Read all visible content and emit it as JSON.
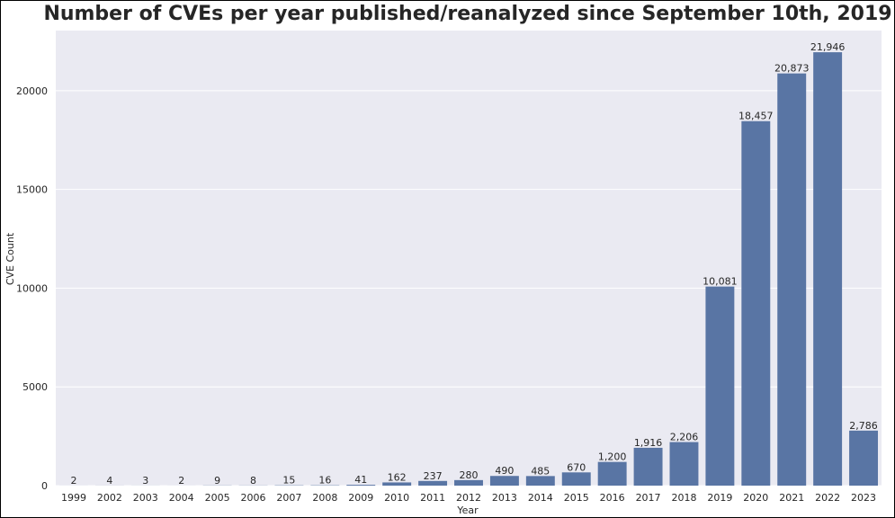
{
  "chart_data": {
    "type": "bar",
    "title": "Number of CVEs per year published/reanalyzed since September 10th, 2019",
    "xlabel": "Year",
    "ylabel": "CVE Count",
    "categories": [
      "1999",
      "2002",
      "2003",
      "2004",
      "2005",
      "2006",
      "2007",
      "2008",
      "2009",
      "2010",
      "2011",
      "2012",
      "2013",
      "2014",
      "2015",
      "2016",
      "2017",
      "2018",
      "2019",
      "2020",
      "2021",
      "2022",
      "2023"
    ],
    "values": [
      2,
      4,
      3,
      2,
      9,
      8,
      15,
      16,
      41,
      162,
      237,
      280,
      490,
      485,
      670,
      1200,
      1916,
      2206,
      10081,
      18457,
      20873,
      21946,
      2786
    ],
    "value_labels": [
      "2",
      "4",
      "3",
      "2",
      "9",
      "8",
      "15",
      "16",
      "41",
      "162",
      "237",
      "280",
      "490",
      "485",
      "670",
      "1,200",
      "1,916",
      "2,206",
      "10,081",
      "18,457",
      "20,873",
      "21,946",
      "2,786"
    ],
    "yticks": [
      0,
      5000,
      10000,
      15000,
      20000
    ],
    "ylim": [
      0,
      23043
    ],
    "grid": true,
    "bar_color": "#5975a4",
    "plot_background": "#eaeaf2"
  }
}
